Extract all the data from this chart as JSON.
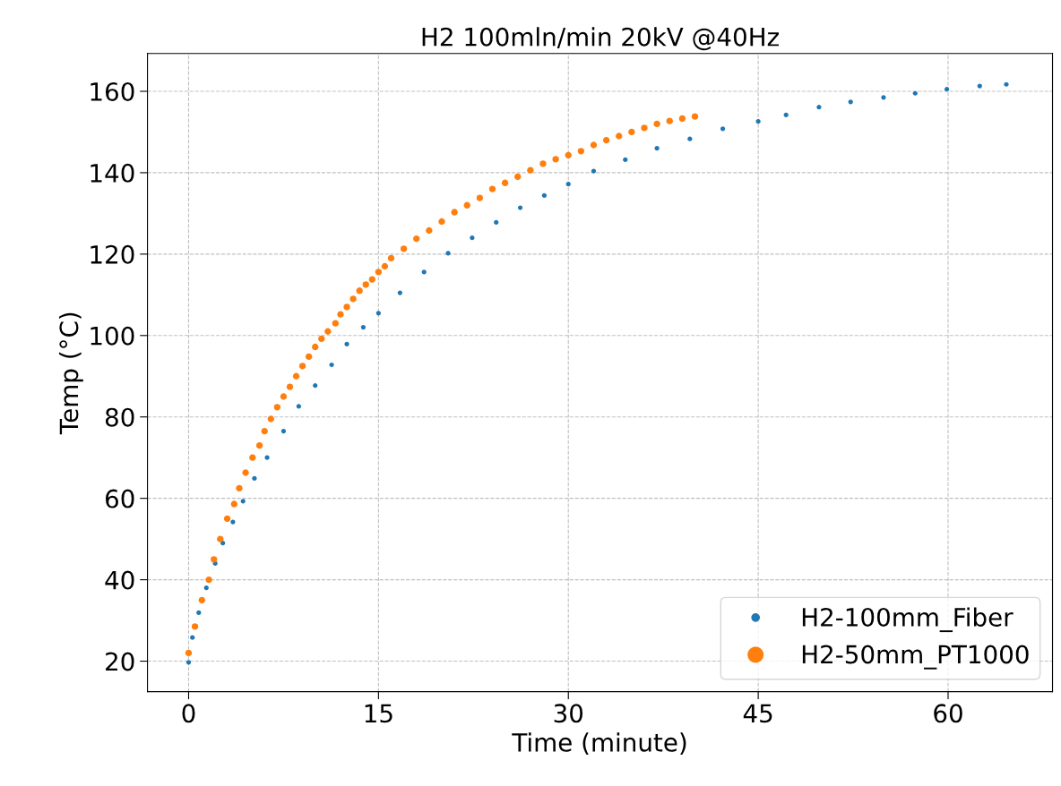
{
  "chart_data": {
    "type": "scatter",
    "title": "H2 100mln/min 20kV @40Hz",
    "xlabel": "Time (minute)",
    "ylabel": "Temp (°C)",
    "xlim": [
      -3.25,
      68.25
    ],
    "ylim": [
      12.5,
      169.3
    ],
    "xticks": [
      0,
      15,
      30,
      45,
      60
    ],
    "yticks": [
      20,
      40,
      60,
      80,
      100,
      120,
      140,
      160
    ],
    "grid": true,
    "legend": "bottom right",
    "marker": "circle",
    "series": [
      {
        "name": "H2-100mm_Fiber",
        "color": "#1f77b4",
        "x": [
          0,
          0.3,
          0.8,
          1.4,
          2.1,
          2.7,
          3.5,
          4.3,
          5.2,
          6.2,
          7.5,
          8.7,
          10,
          11.3,
          12.5,
          13.8,
          15,
          16.7,
          18.6,
          20.5,
          22.4,
          24.3,
          26.2,
          28.1,
          30,
          32,
          34.5,
          37,
          39.6,
          42.2,
          45,
          47.2,
          49.8,
          52.3,
          54.9,
          57.4,
          59.9,
          62.5,
          64.6
        ],
        "values": [
          19.7,
          25.8,
          31.9,
          38,
          44,
          49,
          54.2,
          59.3,
          64.9,
          70,
          76.5,
          82.6,
          87.7,
          92.8,
          97.9,
          102,
          105.5,
          110.5,
          115.6,
          120.2,
          124,
          127.8,
          131.4,
          134.4,
          137.2,
          140.4,
          143.2,
          146,
          148.3,
          150.8,
          152.6,
          154.2,
          156.1,
          157.4,
          158.5,
          159.5,
          160.5,
          161.3,
          161.7
        ]
      },
      {
        "name": "H2-50mm_PT1000",
        "color": "#ff7f0e",
        "x": [
          0,
          0.5,
          1.05,
          1.6,
          2,
          2.5,
          3.05,
          3.6,
          4,
          4.5,
          5.05,
          5.6,
          6,
          6.5,
          7,
          7.5,
          8,
          8.5,
          9,
          9.5,
          10,
          10.5,
          11,
          11.6,
          12,
          12.5,
          13,
          13.5,
          14,
          14.5,
          15,
          15.5,
          16,
          17,
          18,
          19,
          20,
          21,
          22,
          23,
          24,
          25,
          26,
          27,
          28,
          29,
          30,
          31,
          32,
          33,
          34,
          35,
          36,
          37,
          38,
          39,
          40
        ],
        "values": [
          22,
          28.5,
          35,
          40,
          45,
          50,
          55,
          58.6,
          62.5,
          66.3,
          70,
          73,
          76.5,
          79.5,
          82.4,
          85,
          87.4,
          90,
          92.5,
          94.8,
          97.2,
          99.2,
          101,
          103,
          105.2,
          107,
          109,
          111,
          112.5,
          113.8,
          115.6,
          117,
          119,
          121.3,
          123.8,
          125.8,
          128,
          130.3,
          132,
          133.8,
          136,
          137.5,
          139,
          140.6,
          142.2,
          143.3,
          144.3,
          145.3,
          146.8,
          148,
          149,
          150,
          151,
          152,
          152.7,
          153.3,
          153.8
        ]
      }
    ]
  }
}
